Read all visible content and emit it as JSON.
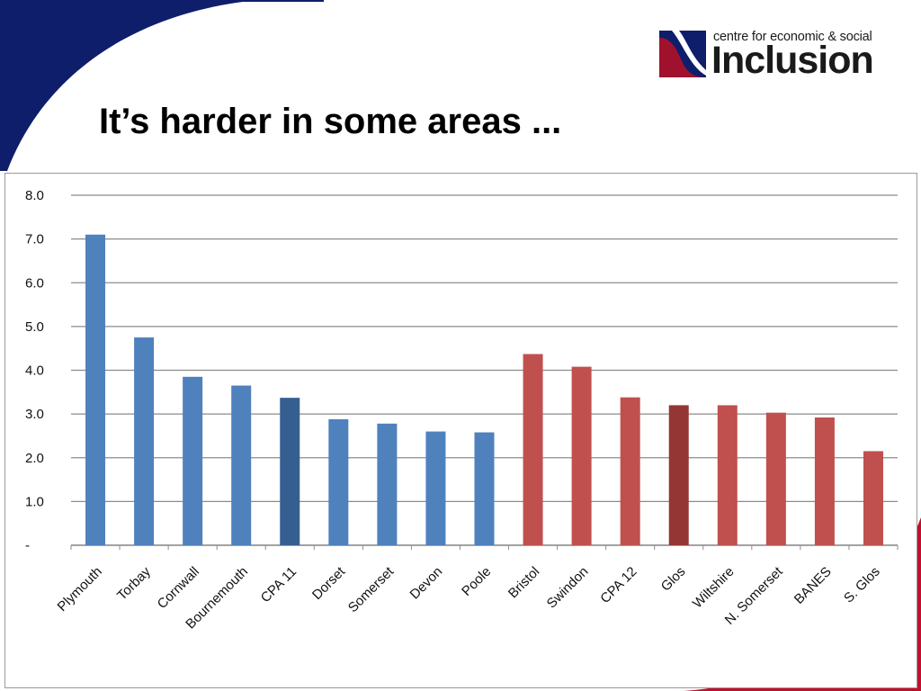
{
  "slide": {
    "title": "It’s harder in some areas ...",
    "logo": {
      "tagline": "centre for economic & social",
      "wordmark": "Inclusion"
    },
    "colors": {
      "navy": "#0f1e6b",
      "maroon": "#a0112d",
      "accent_red": "#c0102e"
    }
  },
  "chart_data": {
    "type": "bar",
    "title": "",
    "xlabel": "",
    "ylabel": "",
    "ylim": [
      0,
      8
    ],
    "y_ticks": [
      0,
      1,
      2,
      3,
      4,
      5,
      6,
      7,
      8
    ],
    "y_tick_labels": [
      "-",
      "1.0",
      "2.0",
      "3.0",
      "4.0",
      "5.0",
      "6.0",
      "7.0",
      "8.0"
    ],
    "grid": true,
    "legend": "none",
    "categories": [
      "Plymouth",
      "Torbay",
      "Cornwall",
      "Bournemouth",
      "CPA 11",
      "Dorset",
      "Somerset",
      "Devon",
      "Poole",
      "Bristol",
      "Swindon",
      "CPA 12",
      "Glos",
      "Wiltshire",
      "N. Somerset",
      "BANES",
      "S. Glos"
    ],
    "values": [
      7.1,
      4.75,
      3.85,
      3.65,
      3.37,
      2.88,
      2.78,
      2.6,
      2.58,
      4.37,
      4.08,
      3.38,
      3.2,
      3.2,
      3.03,
      2.92,
      2.15
    ],
    "bar_colors": [
      "#4f81bd",
      "#4f81bd",
      "#4f81bd",
      "#4f81bd",
      "#365f91",
      "#4f81bd",
      "#4f81bd",
      "#4f81bd",
      "#4f81bd",
      "#c0504d",
      "#c0504d",
      "#c0504d",
      "#943634",
      "#c0504d",
      "#c0504d",
      "#c0504d",
      "#c0504d"
    ]
  }
}
